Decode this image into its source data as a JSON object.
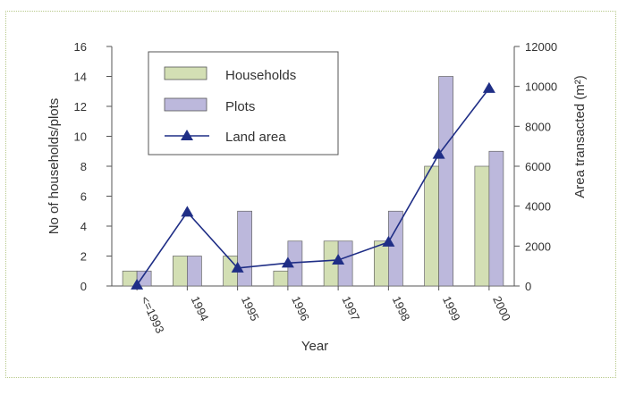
{
  "chart_data": {
    "type": "bar",
    "categories": [
      "<=1993",
      "1994",
      "1995",
      "1996",
      "1997",
      "1998",
      "1999",
      "2000"
    ],
    "series": [
      {
        "name": "Households",
        "kind": "bar",
        "axis": "left",
        "color": "#d3dfb4",
        "values": [
          1,
          2,
          2,
          1,
          3,
          3,
          8,
          8
        ]
      },
      {
        "name": "Plots",
        "kind": "bar",
        "axis": "left",
        "color": "#bcb8dc",
        "values": [
          1,
          2,
          5,
          3,
          3,
          5,
          14,
          9
        ]
      },
      {
        "name": "Land area",
        "kind": "line",
        "axis": "right",
        "color": "#1f2e86",
        "values": [
          50,
          3700,
          900,
          1150,
          1300,
          2200,
          6600,
          9900
        ]
      }
    ],
    "xlabel": "Year",
    "ylabel": "No of households/plots",
    "y2label": "Area transacted (m²)",
    "ylim": [
      0,
      16
    ],
    "yticks": [
      0,
      2,
      4,
      6,
      8,
      10,
      12,
      14,
      16
    ],
    "y2lim": [
      0,
      12000
    ],
    "y2ticks": [
      0,
      2000,
      4000,
      6000,
      8000,
      10000,
      12000
    ],
    "legend_position": "top-left",
    "grid": false
  }
}
